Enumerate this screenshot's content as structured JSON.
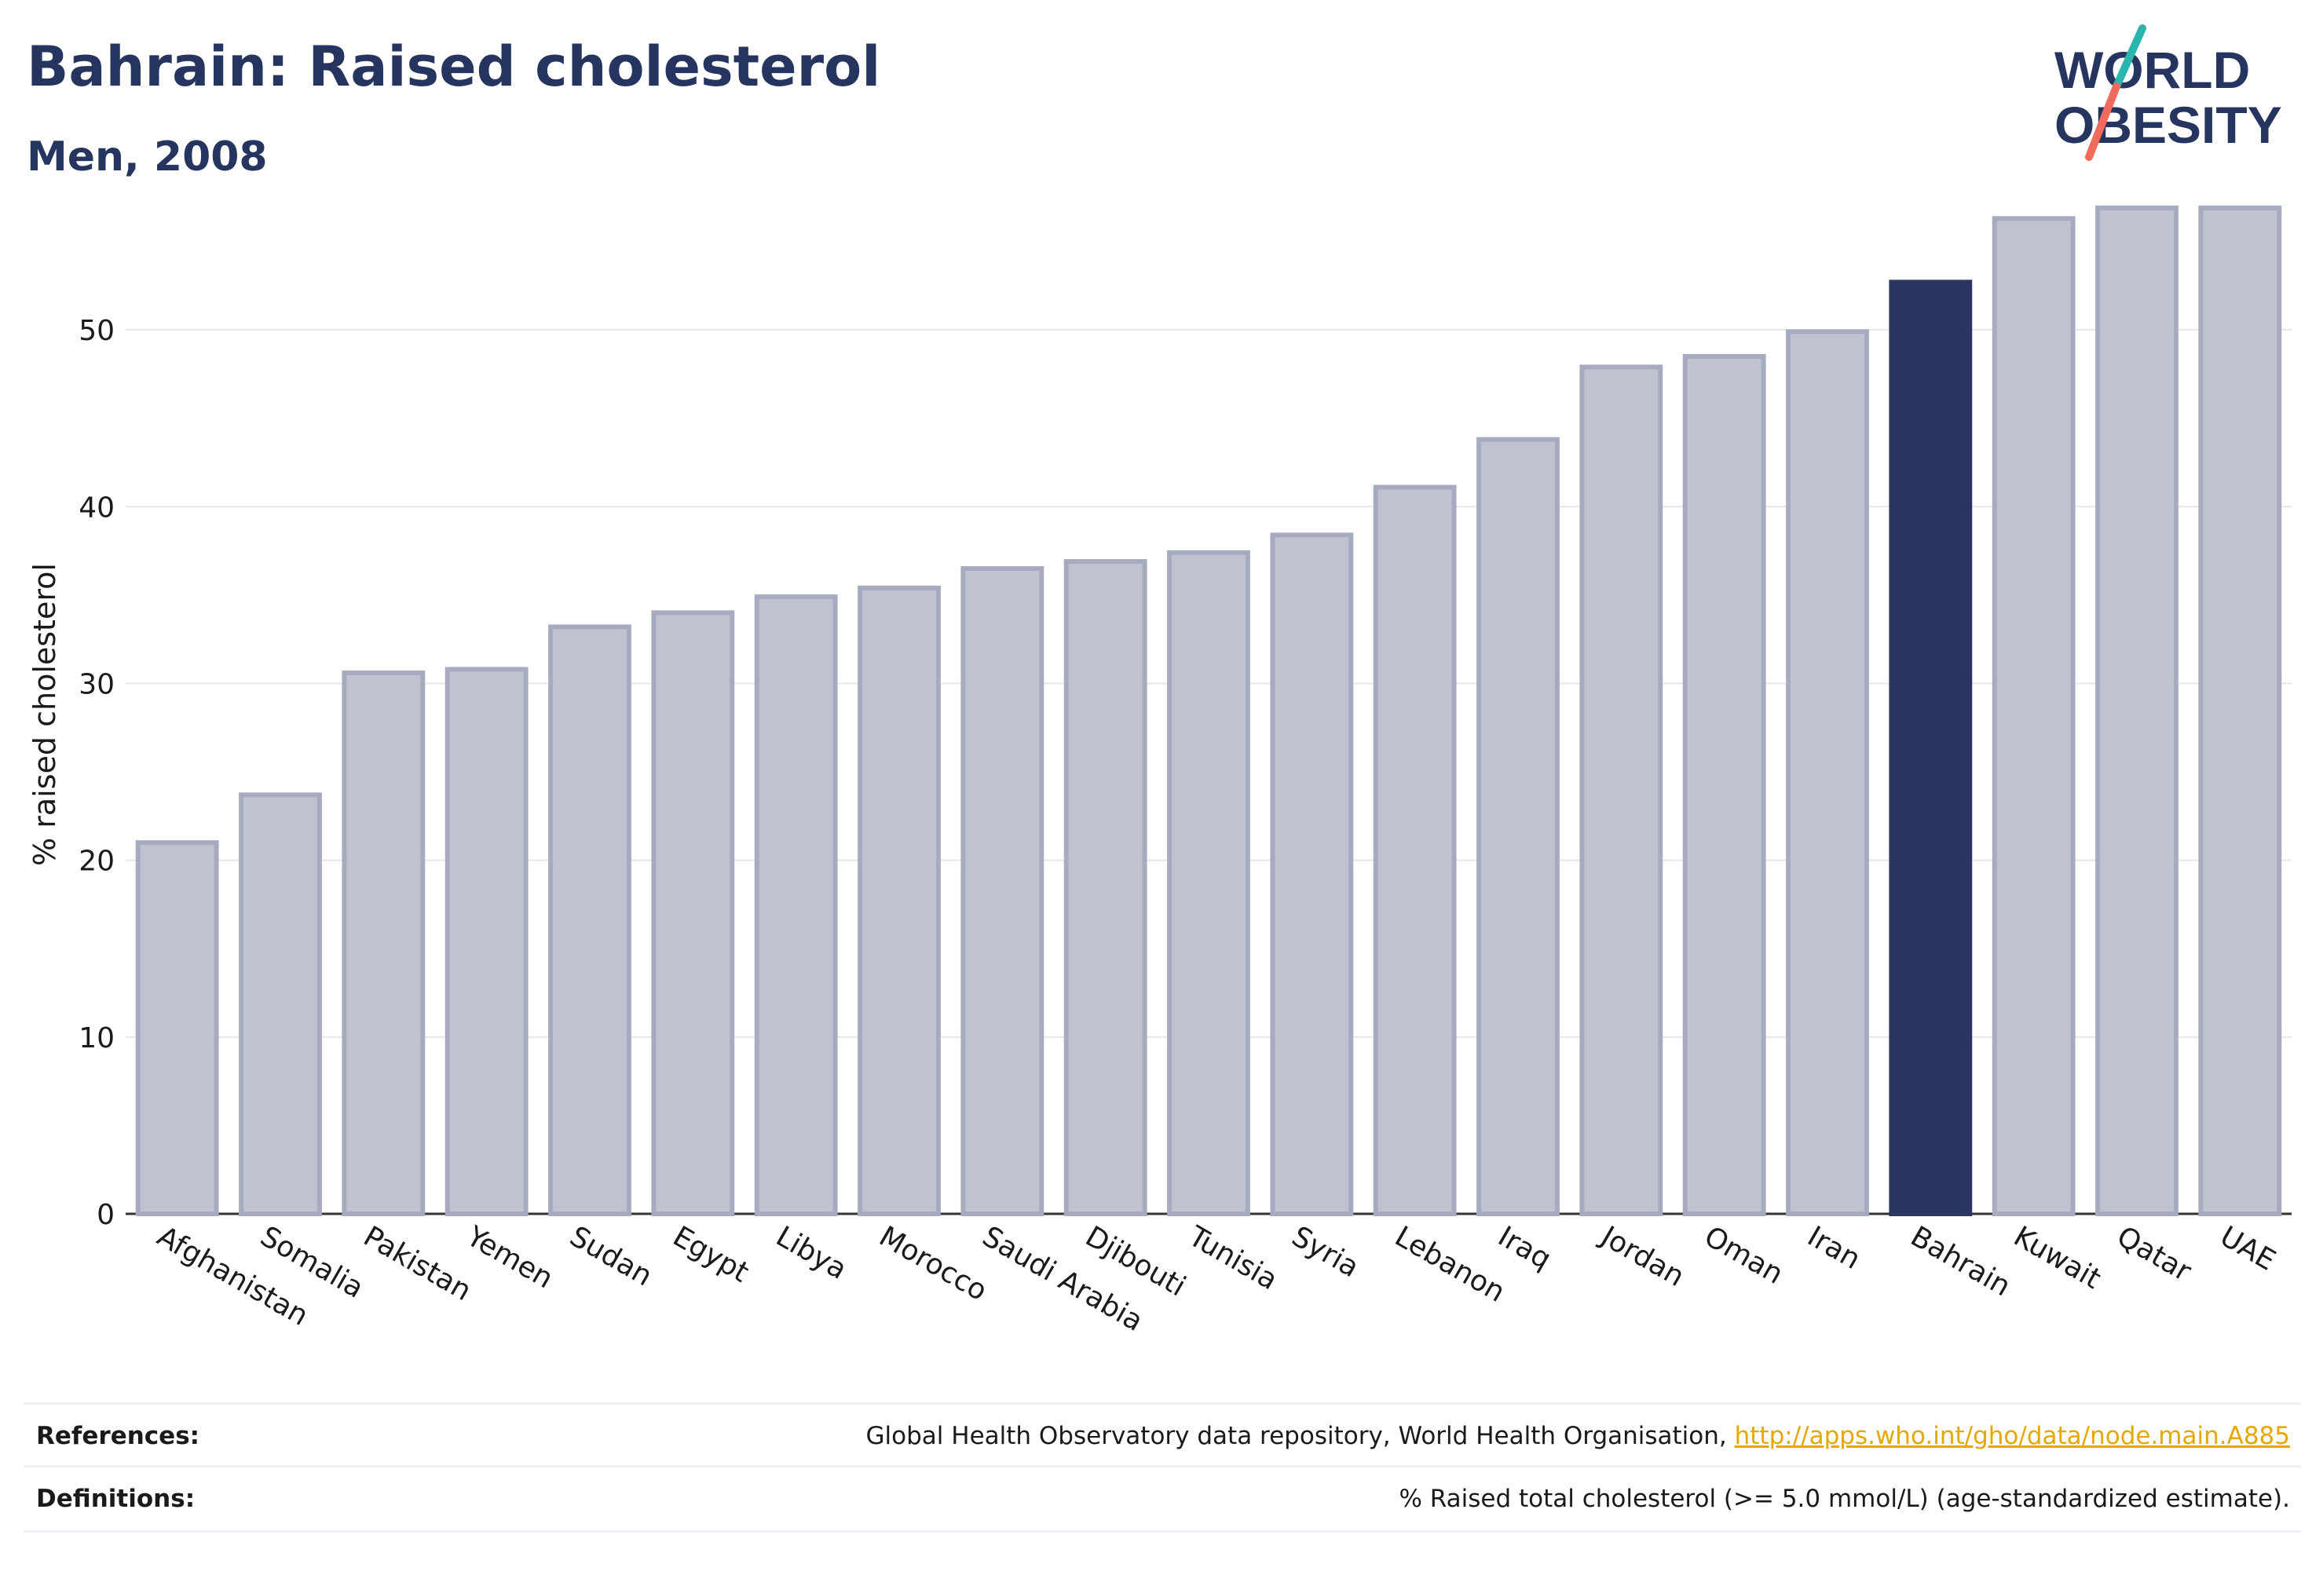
{
  "header": {
    "title": "Bahrain: Raised cholesterol",
    "subtitle": "Men, 2008"
  },
  "logo": {
    "line1": "WORLD",
    "line2": "OBESITY",
    "colors": {
      "text": "#263460",
      "slash_top": "#2ab5b0",
      "slash_bottom": "#f06b5b"
    }
  },
  "chart_data": {
    "type": "bar",
    "ylabel": "% raised cholesterol",
    "xlabel": "",
    "ylim": [
      0,
      58
    ],
    "yticks": [
      0,
      10,
      20,
      30,
      40,
      50
    ],
    "grid": true,
    "highlight": "Bahrain",
    "colors": {
      "bar": "#c0c3cf",
      "bar_stroke": "#a6abbf",
      "highlight": "#2a3560"
    },
    "categories": [
      "Afghanistan",
      "Somalia",
      "Pakistan",
      "Yemen",
      "Sudan",
      "Egypt",
      "Libya",
      "Morocco",
      "Saudi Arabia",
      "Djibouti",
      "Tunisia",
      "Syria",
      "Lebanon",
      "Iraq",
      "Jordan",
      "Oman",
      "Iran",
      "Bahrain",
      "Kuwait",
      "Qatar",
      "UAE"
    ],
    "values": [
      21.0,
      23.7,
      30.6,
      30.8,
      33.2,
      34.0,
      34.9,
      35.4,
      36.5,
      36.9,
      37.4,
      38.4,
      41.1,
      43.8,
      47.9,
      48.5,
      49.9,
      52.7,
      56.3,
      56.9,
      56.9
    ]
  },
  "footer": {
    "references_label": "References:",
    "references_text": "Global Health Observatory data repository, World Health Organisation, ",
    "references_link": "http://apps.who.int/gho/data/node.main.A885",
    "definitions_label": "Definitions:",
    "definitions_text": "% Raised total cholesterol (>= 5.0 mmol/L) (age-standardized estimate)."
  }
}
